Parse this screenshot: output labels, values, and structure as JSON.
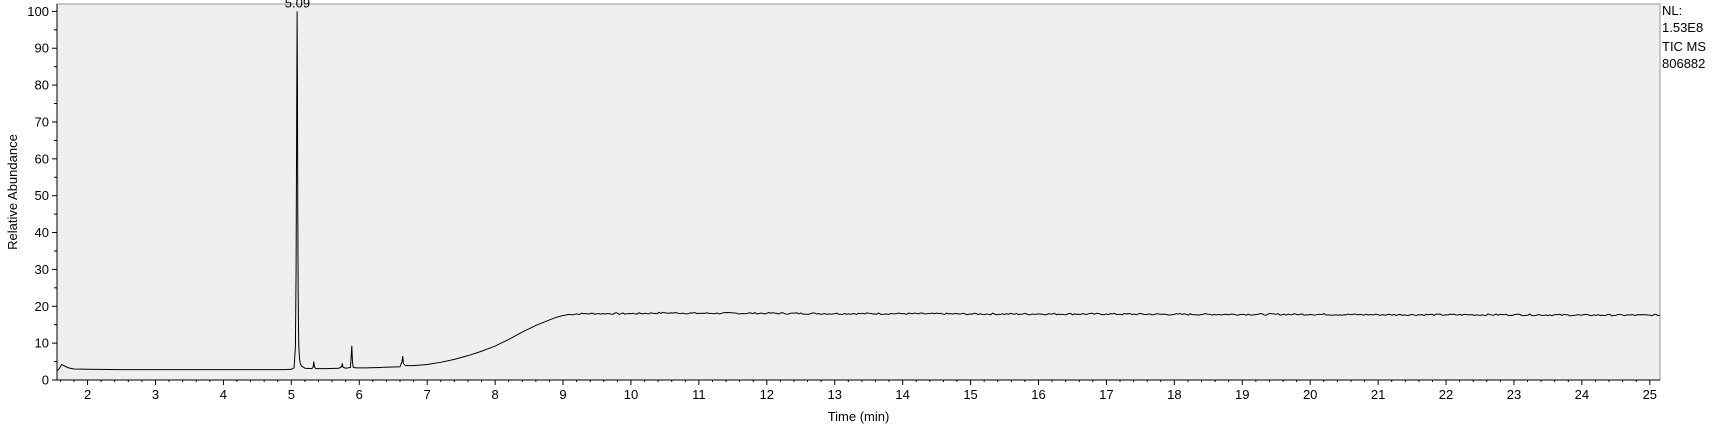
{
  "chart_data": {
    "type": "line",
    "title": "",
    "xlabel": "Time (min)",
    "ylabel": "Relative Abundance",
    "xlim": [
      1.55,
      25.15
    ],
    "ylim": [
      0,
      102
    ],
    "x_ticks": [
      2,
      3,
      4,
      5,
      6,
      7,
      8,
      9,
      10,
      11,
      12,
      13,
      14,
      15,
      16,
      17,
      18,
      19,
      20,
      21,
      22,
      23,
      24,
      25
    ],
    "y_ticks": [
      0,
      10,
      20,
      30,
      40,
      50,
      60,
      70,
      80,
      90,
      100
    ],
    "background": "#efefef",
    "line_color": "#000000",
    "grid": false,
    "legend": "none",
    "info": {
      "nl_label": "NL:",
      "nl_value": "1.53E8",
      "scan": "TIC  MS",
      "file": "806882"
    },
    "annotations": [
      {
        "x": 5.09,
        "y": 100,
        "text": "5.09"
      }
    ],
    "series": [
      {
        "x": [
          1.55,
          1.58,
          1.62,
          1.66,
          1.72,
          1.8,
          2.0,
          2.5,
          3.0,
          3.5,
          4.0,
          4.5,
          4.9,
          5.0,
          5.04,
          5.06,
          5.07,
          5.08,
          5.085,
          5.09,
          5.095,
          5.1,
          5.105,
          5.11,
          5.12,
          5.13,
          5.15,
          5.2,
          5.3,
          5.32,
          5.33,
          5.34,
          5.36,
          5.5,
          5.7,
          5.74,
          5.75,
          5.76,
          5.8,
          5.87,
          5.88,
          5.89,
          5.9,
          5.91,
          5.95,
          6.1,
          6.3,
          6.6,
          6.63,
          6.64,
          6.65,
          6.68,
          6.8,
          7.0,
          7.2,
          7.4,
          7.6,
          7.8,
          8.0,
          8.2,
          8.4,
          8.6,
          8.8,
          8.9,
          9.0,
          9.1,
          9.3,
          9.5,
          10.0,
          10.5,
          11.0,
          12.0,
          13.0,
          14.0,
          15.0,
          16.0,
          17.0,
          18.0,
          19.0,
          20.0,
          21.0,
          22.0,
          23.0,
          24.0,
          25.0,
          25.15
        ],
        "y": [
          2.5,
          3.0,
          4.2,
          3.8,
          3.3,
          3.0,
          2.9,
          2.8,
          2.8,
          2.8,
          2.8,
          2.8,
          2.8,
          2.9,
          3.3,
          9,
          30,
          78,
          100,
          80,
          45,
          25,
          15,
          9,
          6,
          4.5,
          3.8,
          3.2,
          3.1,
          3.4,
          5,
          3.6,
          3.1,
          3.1,
          3.2,
          3.6,
          4.5,
          3.5,
          3.2,
          3.4,
          6,
          9.3,
          5,
          3.5,
          3.3,
          3.3,
          3.4,
          3.6,
          5,
          6.5,
          4.5,
          3.9,
          3.9,
          4.2,
          4.8,
          5.6,
          6.6,
          7.8,
          9.2,
          11.0,
          13.0,
          14.8,
          16.3,
          17.0,
          17.5,
          17.8,
          18.0,
          18.0,
          18.0,
          18.2,
          18.1,
          18.1,
          18.0,
          18.0,
          17.9,
          17.9,
          17.9,
          17.8,
          17.8,
          17.8,
          17.7,
          17.7,
          17.7,
          17.6,
          17.6,
          17.6
        ]
      }
    ]
  }
}
